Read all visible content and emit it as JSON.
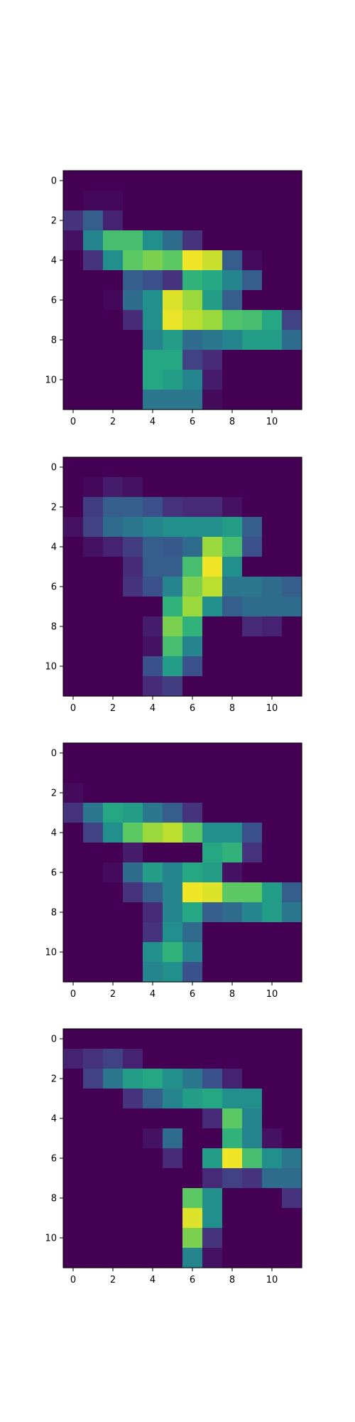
{
  "chart_data": [
    {
      "type": "heatmap",
      "title": "",
      "colormap": "viridis",
      "xlim": [
        -0.5,
        11.5
      ],
      "ylim": [
        11.5,
        -0.5
      ],
      "x_ticks": [
        0,
        2,
        4,
        6,
        8,
        10
      ],
      "y_ticks": [
        0,
        2,
        4,
        6,
        8,
        10
      ],
      "x_tick_labels": [
        "0",
        "2",
        "4",
        "6",
        "8",
        "10"
      ],
      "y_tick_labels": [
        "0",
        "2",
        "4",
        "6",
        "8",
        "10"
      ],
      "values": [
        [
          0,
          0,
          0,
          0,
          0,
          0,
          0,
          0,
          0,
          0,
          0,
          0
        ],
        [
          0,
          0.02,
          0.02,
          0,
          0,
          0,
          0,
          0,
          0,
          0,
          0,
          0
        ],
        [
          0.15,
          0.3,
          0.1,
          0,
          0,
          0,
          0,
          0,
          0,
          0,
          0,
          0
        ],
        [
          0.05,
          0.45,
          0.7,
          0.7,
          0.5,
          0.35,
          0.15,
          0,
          0,
          0,
          0,
          0
        ],
        [
          0,
          0.15,
          0.5,
          0.75,
          0.8,
          0.75,
          0.98,
          0.92,
          0.3,
          0.03,
          0,
          0
        ],
        [
          0,
          0,
          0,
          0.3,
          0.25,
          0.15,
          0.65,
          0.6,
          0.45,
          0.3,
          0,
          0
        ],
        [
          0,
          0,
          0.02,
          0.35,
          0.5,
          0.95,
          0.85,
          0.55,
          0.3,
          0,
          0,
          0
        ],
        [
          0,
          0,
          0,
          0.12,
          0.5,
          0.97,
          0.9,
          0.85,
          0.72,
          0.7,
          0.6,
          0.2
        ],
        [
          0,
          0,
          0,
          0,
          0.45,
          0.55,
          0.35,
          0.4,
          0.45,
          0.55,
          0.55,
          0.35
        ],
        [
          0,
          0,
          0,
          0,
          0.6,
          0.6,
          0.2,
          0.12,
          0,
          0,
          0,
          0
        ],
        [
          0,
          0,
          0,
          0,
          0.6,
          0.55,
          0.45,
          0.08,
          0,
          0,
          0,
          0
        ],
        [
          0,
          0,
          0,
          0,
          0.4,
          0.4,
          0.4,
          0.03,
          0,
          0,
          0,
          0
        ]
      ]
    },
    {
      "type": "heatmap",
      "title": "",
      "colormap": "viridis",
      "xlim": [
        -0.5,
        11.5
      ],
      "ylim": [
        11.5,
        -0.5
      ],
      "x_ticks": [
        0,
        2,
        4,
        6,
        8,
        10
      ],
      "y_ticks": [
        0,
        2,
        4,
        6,
        8,
        10
      ],
      "x_tick_labels": [
        "0",
        "2",
        "4",
        "6",
        "8",
        "10"
      ],
      "y_tick_labels": [
        "0",
        "2",
        "4",
        "6",
        "8",
        "10"
      ],
      "values": [
        [
          0,
          0,
          0,
          0,
          0,
          0,
          0,
          0,
          0,
          0,
          0,
          0
        ],
        [
          0,
          0.02,
          0.08,
          0.05,
          0,
          0,
          0,
          0,
          0,
          0,
          0,
          0
        ],
        [
          0,
          0.18,
          0.3,
          0.3,
          0.25,
          0.15,
          0.12,
          0.12,
          0.05,
          0,
          0,
          0
        ],
        [
          0.05,
          0.2,
          0.35,
          0.4,
          0.45,
          0.5,
          0.5,
          0.5,
          0.55,
          0.3,
          0,
          0
        ],
        [
          0,
          0.05,
          0.1,
          0.18,
          0.3,
          0.28,
          0.35,
          0.85,
          0.7,
          0.25,
          0,
          0
        ],
        [
          0,
          0,
          0,
          0.12,
          0.3,
          0.3,
          0.7,
          0.98,
          0.5,
          0,
          0,
          0
        ],
        [
          0,
          0,
          0,
          0.15,
          0.25,
          0.45,
          0.8,
          0.9,
          0.4,
          0.4,
          0.35,
          0.3
        ],
        [
          0,
          0,
          0,
          0,
          0,
          0.65,
          0.85,
          0.5,
          0.3,
          0.35,
          0.35,
          0.35
        ],
        [
          0,
          0,
          0,
          0,
          0.08,
          0.8,
          0.65,
          0,
          0,
          0.12,
          0.1,
          0
        ],
        [
          0,
          0,
          0,
          0,
          0.05,
          0.7,
          0.45,
          0,
          0,
          0,
          0,
          0
        ],
        [
          0,
          0,
          0,
          0,
          0.25,
          0.55,
          0.25,
          0,
          0,
          0,
          0,
          0
        ],
        [
          0,
          0,
          0,
          0,
          0.12,
          0.18,
          0,
          0,
          0,
          0,
          0,
          0
        ]
      ]
    },
    {
      "type": "heatmap",
      "title": "",
      "colormap": "viridis",
      "xlim": [
        -0.5,
        11.5
      ],
      "ylim": [
        11.5,
        -0.5
      ],
      "x_ticks": [
        0,
        2,
        4,
        6,
        8,
        10
      ],
      "y_ticks": [
        0,
        2,
        4,
        6,
        8,
        10
      ],
      "x_tick_labels": [
        "0",
        "2",
        "4",
        "6",
        "8",
        "10"
      ],
      "y_tick_labels": [
        "0",
        "2",
        "4",
        "6",
        "8",
        "10"
      ],
      "values": [
        [
          0,
          0,
          0,
          0,
          0,
          0,
          0,
          0,
          0,
          0,
          0,
          0
        ],
        [
          0,
          0,
          0,
          0,
          0,
          0,
          0,
          0,
          0,
          0,
          0,
          0
        ],
        [
          0.03,
          0,
          0,
          0,
          0,
          0,
          0,
          0,
          0,
          0,
          0,
          0
        ],
        [
          0.15,
          0.4,
          0.6,
          0.55,
          0.4,
          0.3,
          0.15,
          0,
          0,
          0,
          0,
          0
        ],
        [
          0,
          0.2,
          0.5,
          0.75,
          0.85,
          0.9,
          0.75,
          0.5,
          0.5,
          0.25,
          0,
          0
        ],
        [
          0,
          0,
          0,
          0.08,
          0,
          0,
          0,
          0.6,
          0.65,
          0.15,
          0,
          0
        ],
        [
          0,
          0,
          0.03,
          0.35,
          0.55,
          0.45,
          0.6,
          0.55,
          0.05,
          0,
          0,
          0
        ],
        [
          0,
          0,
          0,
          0.15,
          0.3,
          0.45,
          0.98,
          0.95,
          0.75,
          0.75,
          0.55,
          0.3
        ],
        [
          0,
          0,
          0,
          0,
          0.12,
          0.45,
          0.6,
          0.3,
          0.35,
          0.45,
          0.55,
          0.4
        ],
        [
          0,
          0,
          0,
          0,
          0.15,
          0.5,
          0.35,
          0,
          0,
          0,
          0,
          0
        ],
        [
          0,
          0,
          0,
          0,
          0.5,
          0.65,
          0.45,
          0,
          0,
          0,
          0,
          0
        ],
        [
          0,
          0,
          0,
          0,
          0.45,
          0.5,
          0.25,
          0,
          0,
          0,
          0,
          0
        ]
      ]
    },
    {
      "type": "heatmap",
      "title": "",
      "colormap": "viridis",
      "xlim": [
        -0.5,
        11.5
      ],
      "ylim": [
        11.5,
        -0.5
      ],
      "x_ticks": [
        0,
        2,
        4,
        6,
        8,
        10
      ],
      "y_ticks": [
        0,
        2,
        4,
        6,
        8,
        10
      ],
      "x_tick_labels": [
        "0",
        "2",
        "4",
        "6",
        "8",
        "10"
      ],
      "y_tick_labels": [
        "0",
        "2",
        "4",
        "6",
        "8",
        "10"
      ],
      "values": [
        [
          0,
          0,
          0,
          0,
          0,
          0,
          0,
          0,
          0,
          0,
          0,
          0
        ],
        [
          0.1,
          0.15,
          0.2,
          0.1,
          0,
          0,
          0,
          0,
          0,
          0,
          0,
          0
        ],
        [
          0,
          0.2,
          0.4,
          0.55,
          0.6,
          0.5,
          0.4,
          0.25,
          0.1,
          0,
          0,
          0
        ],
        [
          0,
          0,
          0,
          0.15,
          0.3,
          0.45,
          0.55,
          0.6,
          0.5,
          0.5,
          0,
          0
        ],
        [
          0,
          0,
          0,
          0,
          0,
          0,
          0,
          0.12,
          0.75,
          0.45,
          0,
          0
        ],
        [
          0,
          0,
          0,
          0,
          0.05,
          0.35,
          0,
          0,
          0.65,
          0.45,
          0.05,
          0
        ],
        [
          0,
          0,
          0,
          0,
          0,
          0.12,
          0,
          0.55,
          0.98,
          0.7,
          0.5,
          0.4
        ],
        [
          0,
          0,
          0,
          0,
          0,
          0,
          0,
          0.12,
          0.2,
          0.15,
          0.35,
          0.35
        ],
        [
          0,
          0,
          0,
          0,
          0,
          0,
          0.75,
          0.5,
          0,
          0,
          0,
          0.15
        ],
        [
          0,
          0,
          0,
          0,
          0,
          0,
          0.95,
          0.5,
          0,
          0,
          0,
          0
        ],
        [
          0,
          0,
          0,
          0,
          0,
          0,
          0.8,
          0.15,
          0,
          0,
          0,
          0
        ],
        [
          0,
          0,
          0,
          0,
          0,
          0,
          0.45,
          0.05,
          0,
          0,
          0,
          0
        ]
      ]
    }
  ]
}
